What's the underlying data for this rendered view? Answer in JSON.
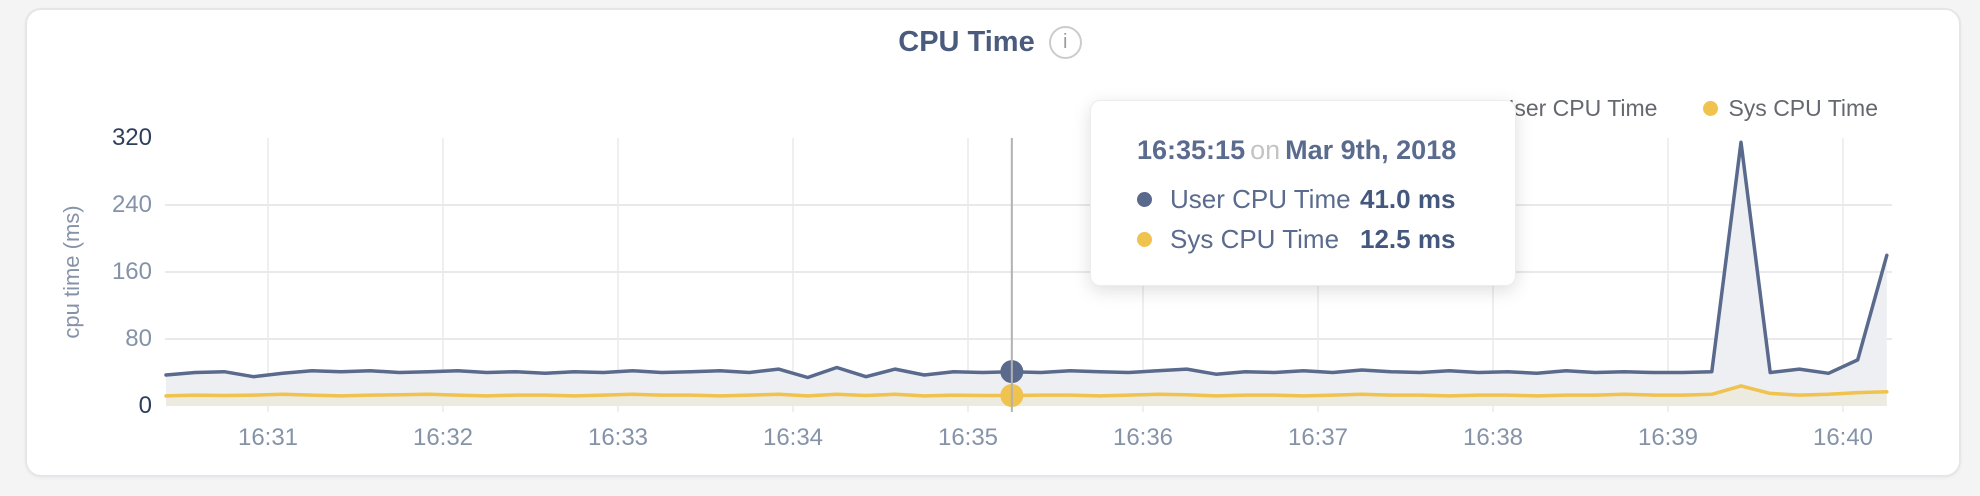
{
  "header": {
    "title": "CPU Time",
    "info_icon": "i"
  },
  "legend": [
    {
      "label": "User CPU Time",
      "color": "#5a6a8d"
    },
    {
      "label": "Sys CPU Time",
      "color": "#f0c24e"
    }
  ],
  "tooltip": {
    "time": "16:35:15",
    "on_word": "on",
    "date": "Mar 9th, 2018",
    "rows": [
      {
        "label": "User CPU Time",
        "value": "41.0 ms",
        "color": "#5a6a8d"
      },
      {
        "label": "Sys CPU Time",
        "value": "12.5 ms",
        "color": "#f0c24e"
      }
    ]
  },
  "chart_data": {
    "type": "area",
    "title": "CPU Time",
    "ylabel": "cpu time (ms)",
    "ylim": [
      0,
      320
    ],
    "yticks": [
      0,
      80,
      160,
      240,
      320
    ],
    "xticks": [
      "16:31",
      "16:32",
      "16:33",
      "16:34",
      "16:35",
      "16:36",
      "16:37",
      "16:38",
      "16:39",
      "16:40"
    ],
    "x_start": "16:30:25",
    "x_step_seconds": 10,
    "grid": true,
    "legend_position": "top-right",
    "series": [
      {
        "name": "User CPU Time",
        "color": "#5a6a8d",
        "fill": "#edeff3",
        "values": [
          37,
          40,
          41,
          35,
          39,
          42,
          41,
          42,
          40,
          41,
          42,
          40,
          41,
          39,
          41,
          40,
          42,
          40,
          41,
          42,
          40,
          44,
          34,
          46,
          35,
          44,
          37,
          41,
          40,
          41,
          40,
          42,
          41,
          40,
          42,
          44,
          38,
          41,
          40,
          42,
          40,
          43,
          41,
          40,
          42,
          40,
          41,
          39,
          42,
          40,
          41,
          40,
          40,
          41,
          315,
          40,
          44,
          39,
          55,
          180
        ]
      },
      {
        "name": "Sys CPU Time",
        "color": "#f0c24e",
        "fill": "rgba(240,196,84,0.12)",
        "values": [
          12,
          13,
          12.5,
          13,
          14,
          13,
          12,
          13,
          13.5,
          14,
          13,
          12,
          13,
          13,
          12,
          13,
          14,
          13,
          13,
          12,
          13,
          14,
          12,
          14,
          12.5,
          14,
          12,
          13,
          12.5,
          12.5,
          13,
          13,
          12,
          13,
          14,
          13.5,
          12,
          13,
          13,
          12,
          13,
          14,
          13,
          13,
          12,
          13,
          13,
          12,
          13,
          13,
          14,
          13,
          13,
          14,
          24,
          15,
          13,
          14,
          16,
          17
        ]
      }
    ],
    "hover": {
      "index": 29,
      "time": "16:35:15",
      "user_ms": 41.0,
      "sys_ms": 12.5
    }
  }
}
